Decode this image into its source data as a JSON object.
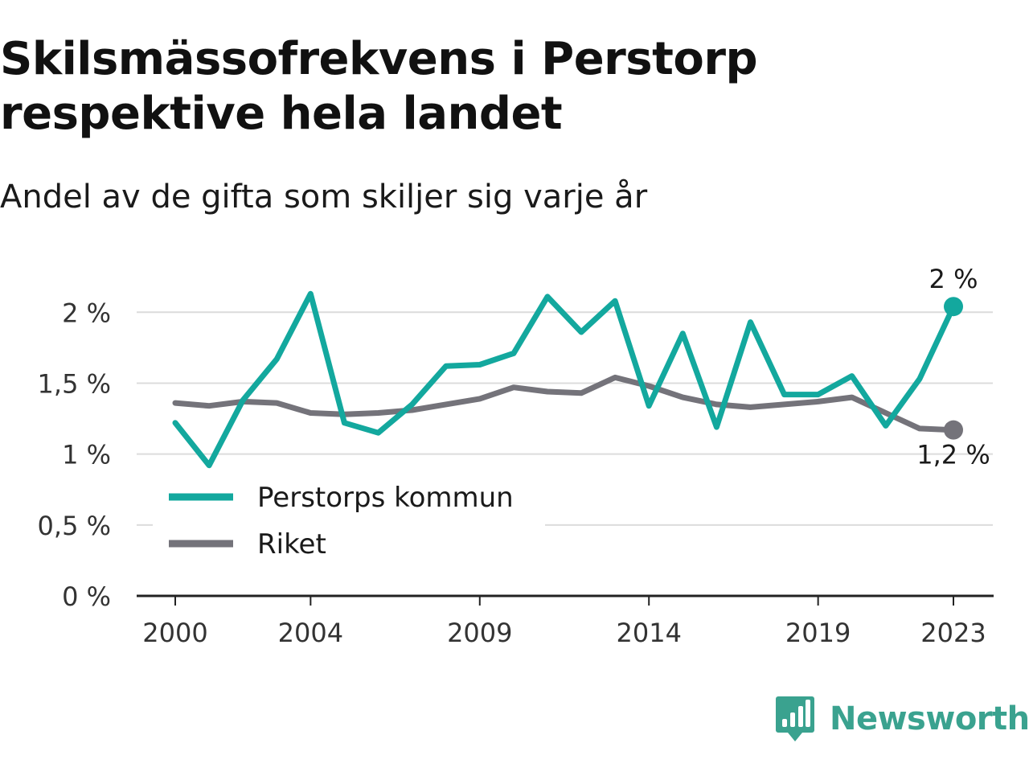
{
  "title": "Skilsmässofrekvens i Perstorp respektive hela landet",
  "subtitle": "Andel av de gifta som skiljer sig varje år",
  "brand": {
    "name": "Newsworthy",
    "icon": "newsworthy-logo-icon",
    "color": "#3aa28f"
  },
  "chart_data": {
    "type": "line",
    "x": [
      2000,
      2001,
      2002,
      2003,
      2004,
      2005,
      2006,
      2007,
      2008,
      2009,
      2010,
      2011,
      2012,
      2013,
      2014,
      2015,
      2016,
      2017,
      2018,
      2019,
      2020,
      2021,
      2022,
      2023
    ],
    "series": [
      {
        "name": "Perstorps kommun",
        "color": "#13a89e",
        "values": [
          1.22,
          0.92,
          1.38,
          1.67,
          2.13,
          1.22,
          1.15,
          1.35,
          1.62,
          1.63,
          1.71,
          2.11,
          1.86,
          2.08,
          1.34,
          1.85,
          1.19,
          1.93,
          1.42,
          1.42,
          1.55,
          1.2,
          1.53,
          2.04
        ]
      },
      {
        "name": "Riket",
        "color": "#74737a",
        "values": [
          1.36,
          1.34,
          1.37,
          1.36,
          1.29,
          1.28,
          1.29,
          1.31,
          1.35,
          1.39,
          1.47,
          1.44,
          1.43,
          1.54,
          1.48,
          1.4,
          1.35,
          1.33,
          1.35,
          1.37,
          1.4,
          1.29,
          1.18,
          1.17
        ]
      }
    ],
    "x_ticks": [
      {
        "value": 2000,
        "label": "2000"
      },
      {
        "value": 2004,
        "label": "2004"
      },
      {
        "value": 2009,
        "label": "2009"
      },
      {
        "value": 2014,
        "label": "2014"
      },
      {
        "value": 2019,
        "label": "2019"
      },
      {
        "value": 2023,
        "label": "2023"
      }
    ],
    "y_ticks": [
      {
        "value": 0,
        "label": "0 %"
      },
      {
        "value": 0.5,
        "label": "0,5 %"
      },
      {
        "value": 1,
        "label": "1 %"
      },
      {
        "value": 1.5,
        "label": "1,5 %"
      },
      {
        "value": 2,
        "label": "2 %"
      }
    ],
    "xlim": [
      2000,
      2023
    ],
    "ylim": [
      0,
      2.2
    ],
    "grid": "horizontal",
    "legend_position": "bottom-left",
    "end_labels": [
      {
        "series": "Perstorps kommun",
        "label": "2 %",
        "position": "above"
      },
      {
        "series": "Riket",
        "label": "1,2 %",
        "position": "below"
      }
    ]
  }
}
